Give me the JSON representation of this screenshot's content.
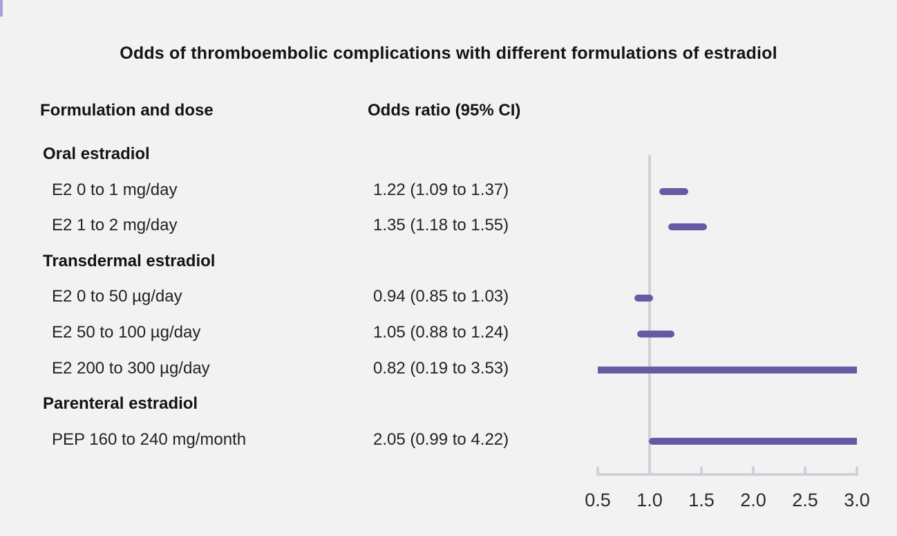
{
  "title": "Odds of thromboembolic complications with different formulations of estradiol",
  "columns": {
    "formulation": "Formulation and dose",
    "odds_ratio": "Odds ratio (95% CI)"
  },
  "colors": {
    "marker_purple": "#6958a4",
    "marker_edge": "#aba1d5",
    "axis_gray": "#cdd2da",
    "text_dark": "#141414"
  },
  "chart_data": {
    "type": "forest",
    "title": "Odds of thromboembolic complications with different formulations of estradiol",
    "x_axis": {
      "range": [
        0.5,
        3.0
      ],
      "ticks": [
        0.5,
        1.0,
        1.5,
        2.0,
        2.5,
        3.0
      ],
      "tick_labels": [
        "0.5",
        "1.0",
        "1.5",
        "2.0",
        "2.5",
        "3.0"
      ],
      "reference_line": 1.0,
      "grid": false
    },
    "legend": "none",
    "rows": [
      {
        "type": "group",
        "label": "Oral estradiol"
      },
      {
        "type": "item",
        "label": "E2 0 to 1 mg/day",
        "or": 1.22,
        "ci_low": 1.09,
        "ci_high": 1.37,
        "display": "1.22 (1.09 to 1.37)"
      },
      {
        "type": "item",
        "label": "E2 1 to 2 mg/day",
        "or": 1.35,
        "ci_low": 1.18,
        "ci_high": 1.55,
        "display": "1.35 (1.18 to 1.55)"
      },
      {
        "type": "group",
        "label": "Transdermal estradiol"
      },
      {
        "type": "item",
        "label": "E2 0 to 50 µg/day",
        "or": 0.94,
        "ci_low": 0.85,
        "ci_high": 1.03,
        "display": "0.94 (0.85 to 1.03)"
      },
      {
        "type": "item",
        "label": "E2 50 to 100 µg/day",
        "or": 1.05,
        "ci_low": 0.88,
        "ci_high": 1.24,
        "display": "1.05 (0.88 to 1.24)"
      },
      {
        "type": "item",
        "label": "E2 200 to 300 µg/day",
        "or": 0.82,
        "ci_low": 0.19,
        "ci_high": 3.53,
        "display": "0.82 (0.19 to 3.53)"
      },
      {
        "type": "group",
        "label": "Parenteral estradiol"
      },
      {
        "type": "item",
        "label": "PEP 160 to 240 mg/month",
        "or": 2.05,
        "ci_low": 0.99,
        "ci_high": 4.22,
        "display": "2.05 (0.99 to 4.22)"
      }
    ]
  }
}
